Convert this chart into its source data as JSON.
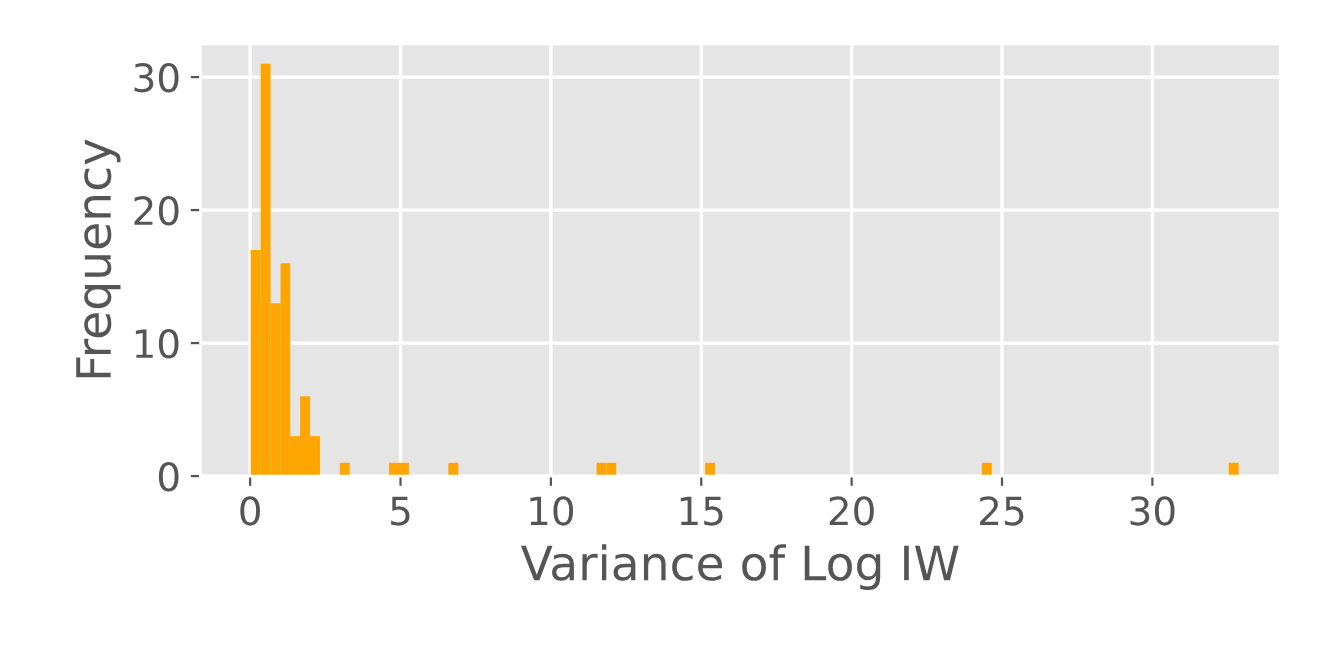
{
  "chart_data": {
    "type": "histogram",
    "xlabel": "Variance of Log IW",
    "ylabel": "Frequency",
    "color": "#ffa500",
    "bins": [
      0.02,
      0.35,
      0.68,
      1.01,
      1.33,
      1.66,
      1.99,
      2.32,
      2.65,
      2.98,
      3.31,
      3.63,
      3.96,
      4.29,
      4.62,
      4.95,
      5.28,
      5.6,
      5.93,
      6.26,
      6.59,
      6.92,
      7.25,
      7.58,
      7.9,
      8.23,
      8.56,
      8.89,
      9.22,
      9.55,
      9.88,
      10.2,
      10.53,
      10.86,
      11.19,
      11.52,
      11.85,
      12.17,
      12.5,
      12.83,
      13.16,
      13.49,
      13.82,
      14.15,
      14.47,
      14.8,
      15.13,
      15.46,
      15.79,
      16.12,
      16.45,
      16.77,
      17.1,
      17.43,
      17.76,
      18.09,
      18.42,
      18.74,
      19.07,
      19.4,
      19.73,
      20.06,
      20.39,
      20.72,
      21.04,
      21.37,
      21.7,
      22.03,
      22.36,
      22.69,
      23.02,
      23.34,
      23.67,
      24.0,
      24.33,
      24.66,
      24.99,
      25.31,
      25.64,
      25.97,
      26.3,
      26.63,
      26.96,
      27.29,
      27.61,
      27.94,
      28.27,
      28.6,
      28.93,
      29.26,
      29.58,
      29.91,
      30.24,
      30.57,
      30.9,
      31.23,
      31.56,
      31.88,
      32.21,
      32.54,
      32.87
    ],
    "values": [
      17,
      31,
      13,
      16,
      3,
      6,
      3,
      0,
      0,
      1,
      0,
      0,
      0,
      0,
      1,
      1,
      0,
      0,
      0,
      0,
      1,
      0,
      0,
      0,
      0,
      0,
      0,
      0,
      0,
      0,
      0,
      0,
      0,
      0,
      0,
      1,
      1,
      0,
      0,
      0,
      0,
      0,
      0,
      0,
      0,
      0,
      1,
      0,
      0,
      0,
      0,
      0,
      0,
      0,
      0,
      0,
      0,
      0,
      0,
      0,
      0,
      0,
      0,
      0,
      0,
      0,
      0,
      0,
      0,
      0,
      0,
      0,
      0,
      0,
      1,
      0,
      0,
      0,
      0,
      0,
      0,
      0,
      0,
      0,
      0,
      0,
      0,
      0,
      0,
      0,
      0,
      0,
      0,
      0,
      0,
      0,
      0,
      0,
      0,
      1
    ],
    "xlim": [
      -1.65,
      34.25
    ],
    "xticks": [
      0,
      5,
      10,
      15,
      20,
      25,
      30
    ],
    "ylim": [
      0,
      32.5
    ],
    "yticks": [
      0,
      10,
      20,
      30
    ],
    "grid": true
  }
}
